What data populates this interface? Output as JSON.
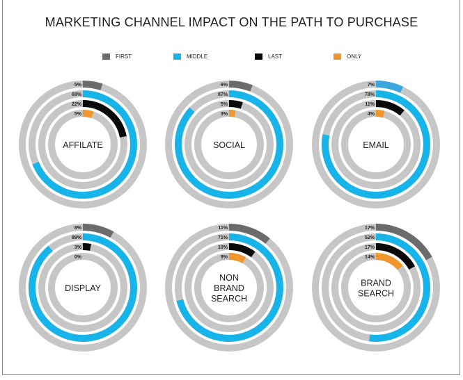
{
  "chart_data": {
    "type": "radial-bar",
    "title": "MARKETING CHANNEL IMPACT ON THE PATH TO PURCHASE",
    "legend_position": "top",
    "series": [
      {
        "name": "FIRST",
        "color": "#6d6a6b"
      },
      {
        "name": "MIDDLE",
        "color": "#16b4e8"
      },
      {
        "name": "LAST",
        "color": "#0a0a0a"
      },
      {
        "name": "ONLY",
        "color": "#f0962a"
      }
    ],
    "track_color": "#c6c6c6",
    "charts": [
      {
        "label": [
          "AFFILATE"
        ],
        "values": [
          5,
          69,
          22,
          5
        ],
        "labels": [
          "5%",
          "69%",
          "22%",
          "5%"
        ]
      },
      {
        "label": [
          "SOCIAL"
        ],
        "values": [
          6,
          87,
          5,
          3
        ],
        "labels": [
          "6%",
          "87%",
          "5%",
          "3%"
        ]
      },
      {
        "label": [
          "EMAIL"
        ],
        "values": [
          7,
          78,
          11,
          4
        ],
        "labels": [
          "7%",
          "78%",
          "11%",
          "4%"
        ],
        "first_color": "#3aa8de"
      },
      {
        "label": [
          "DISPLAY"
        ],
        "values": [
          8,
          89,
          3,
          0
        ],
        "labels": [
          "8%",
          "89%",
          "3%",
          "0%"
        ]
      },
      {
        "label": [
          "NON",
          "BRAND",
          "SEARCH"
        ],
        "values": [
          11,
          71,
          10,
          8
        ],
        "labels": [
          "11%",
          "71%",
          "10%",
          "8%"
        ]
      },
      {
        "label": [
          "BRAND",
          "SEARCH"
        ],
        "values": [
          17,
          52,
          17,
          14
        ],
        "labels": [
          "17%",
          "52%",
          "17%",
          "14%"
        ]
      }
    ]
  }
}
